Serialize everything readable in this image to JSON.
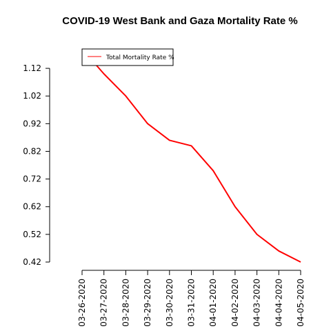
{
  "chart_data": {
    "type": "line",
    "title": "COVID-19 West Bank and Gaza Mortality Rate %",
    "xlabel": "",
    "ylabel": "",
    "categories": [
      "03-26-2020",
      "03-27-2020",
      "03-28-2020",
      "03-29-2020",
      "03-30-2020",
      "03-31-2020",
      "04-01-2020",
      "04-02-2020",
      "04-03-2020",
      "04-04-2020",
      "04-05-2020"
    ],
    "series": [
      {
        "name": "Total Mortality Rate %",
        "color": "#ff0000",
        "values": [
          1.19,
          1.1,
          1.02,
          0.92,
          0.86,
          0.84,
          0.75,
          0.62,
          0.52,
          0.46,
          0.42
        ]
      }
    ],
    "yticks": [
      "0.42",
      "0.52",
      "0.62",
      "0.72",
      "0.82",
      "0.92",
      "1.02",
      "1.12"
    ],
    "ylim": [
      0.42,
      1.19
    ],
    "grid": false,
    "legend_position": "top-left"
  }
}
